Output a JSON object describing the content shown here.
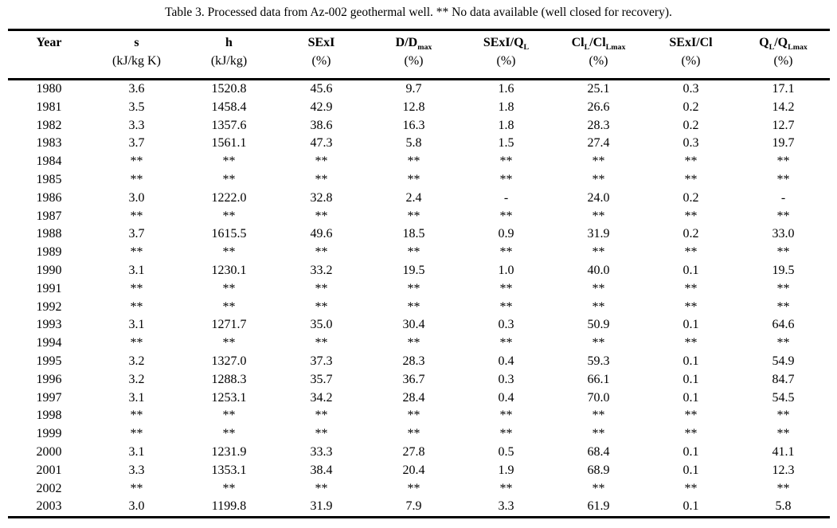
{
  "chart_data": {
    "type": "table",
    "title": "Table 3. Processed data from Az-002 geothermal well. ** No data available (well closed for recovery).",
    "no_data_marker": "**",
    "columns": [
      {
        "label": "Year",
        "unit": ""
      },
      {
        "label": "s",
        "unit": "(kJ/kg K)"
      },
      {
        "label": "h",
        "unit": "(kJ/kg)"
      },
      {
        "label": "SExI",
        "unit": "(%)"
      },
      {
        "label": "D/D_{max}",
        "unit": "(%)"
      },
      {
        "label": "SExI/Q_{L}",
        "unit": "(%)"
      },
      {
        "label": "Cl_{L}/Cl_{Lmax}",
        "unit": "(%)"
      },
      {
        "label": "SExI/Cl",
        "unit": "(%)"
      },
      {
        "label": "Q_{L}/Q_{Lmax}",
        "unit": "(%)"
      }
    ],
    "rows": [
      [
        "1980",
        "3.6",
        "1520.8",
        "45.6",
        "9.7",
        "1.6",
        "25.1",
        "0.3",
        "17.1"
      ],
      [
        "1981",
        "3.5",
        "1458.4",
        "42.9",
        "12.8",
        "1.8",
        "26.6",
        "0.2",
        "14.2"
      ],
      [
        "1982",
        "3.3",
        "1357.6",
        "38.6",
        "16.3",
        "1.8",
        "28.3",
        "0.2",
        "12.7"
      ],
      [
        "1983",
        "3.7",
        "1561.1",
        "47.3",
        "5.8",
        "1.5",
        "27.4",
        "0.3",
        "19.7"
      ],
      [
        "1984",
        "**",
        "**",
        "**",
        "**",
        "**",
        "**",
        "**",
        "**"
      ],
      [
        "1985",
        "**",
        "**",
        "**",
        "**",
        "**",
        "**",
        "**",
        "**"
      ],
      [
        "1986",
        "3.0",
        "1222.0",
        "32.8",
        "2.4",
        "-",
        "24.0",
        "0.2",
        "-"
      ],
      [
        "1987",
        "**",
        "**",
        "**",
        "**",
        "**",
        "**",
        "**",
        "**"
      ],
      [
        "1988",
        "3.7",
        "1615.5",
        "49.6",
        "18.5",
        "0.9",
        "31.9",
        "0.2",
        "33.0"
      ],
      [
        "1989",
        "**",
        "**",
        "**",
        "**",
        "**",
        "**",
        "**",
        "**"
      ],
      [
        "1990",
        "3.1",
        "1230.1",
        "33.2",
        "19.5",
        "1.0",
        "40.0",
        "0.1",
        "19.5"
      ],
      [
        "1991",
        "**",
        "**",
        "**",
        "**",
        "**",
        "**",
        "**",
        "**"
      ],
      [
        "1992",
        "**",
        "**",
        "**",
        "**",
        "**",
        "**",
        "**",
        "**"
      ],
      [
        "1993",
        "3.1",
        "1271.7",
        "35.0",
        "30.4",
        "0.3",
        "50.9",
        "0.1",
        "64.6"
      ],
      [
        "1994",
        "**",
        "**",
        "**",
        "**",
        "**",
        "**",
        "**",
        "**"
      ],
      [
        "1995",
        "3.2",
        "1327.0",
        "37.3",
        "28.3",
        "0.4",
        "59.3",
        "0.1",
        "54.9"
      ],
      [
        "1996",
        "3.2",
        "1288.3",
        "35.7",
        "36.7",
        "0.3",
        "66.1",
        "0.1",
        "84.7"
      ],
      [
        "1997",
        "3.1",
        "1253.1",
        "34.2",
        "28.4",
        "0.4",
        "70.0",
        "0.1",
        "54.5"
      ],
      [
        "1998",
        "**",
        "**",
        "**",
        "**",
        "**",
        "**",
        "**",
        "**"
      ],
      [
        "1999",
        "**",
        "**",
        "**",
        "**",
        "**",
        "**",
        "**",
        "**"
      ],
      [
        "2000",
        "3.1",
        "1231.9",
        "33.3",
        "27.8",
        "0.5",
        "68.4",
        "0.1",
        "41.1"
      ],
      [
        "2001",
        "3.3",
        "1353.1",
        "38.4",
        "20.4",
        "1.9",
        "68.9",
        "0.1",
        "12.3"
      ],
      [
        "2002",
        "**",
        "**",
        "**",
        "**",
        "**",
        "**",
        "**",
        "**"
      ],
      [
        "2003",
        "3.0",
        "1199.8",
        "31.9",
        "7.9",
        "3.3",
        "61.9",
        "0.1",
        "5.8"
      ]
    ]
  }
}
